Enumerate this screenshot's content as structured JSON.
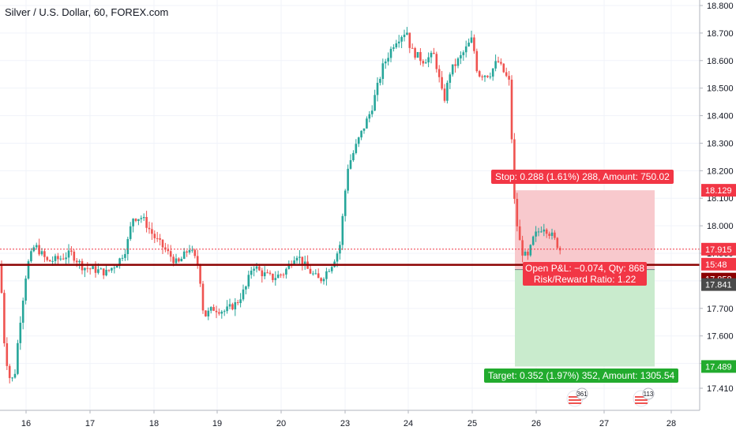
{
  "header": {
    "title": "Silver / U.S. Dollar, 60, FOREX.com"
  },
  "chart_data": {
    "type": "candlestick",
    "title": "Silver / U.S. Dollar, 60, FOREX.com",
    "y_ticks": [
      "17.410",
      "17.500",
      "17.600",
      "17.700",
      "17.800",
      "17.900",
      "18.000",
      "18.100",
      "18.200",
      "18.300",
      "18.400",
      "18.500",
      "18.600",
      "18.700",
      "18.800"
    ],
    "ylim": [
      17.41,
      18.8
    ],
    "x_ticks": [
      "16",
      "17",
      "18",
      "19",
      "20",
      "23",
      "24",
      "25",
      "26",
      "27",
      "28"
    ],
    "grid": true,
    "position": {
      "stop_label": "Stop: 0.288 (1.61%) 288, Amount: 750.02",
      "pnl_label": "Open P&L: −0.074, Qty: 868",
      "rr_label": "Risk/Reward Ratio: 1.22",
      "target_label": "Target: 0.352 (1.97%) 352, Amount: 1305.54",
      "stop_price": 18.129,
      "entry_price": 17.841,
      "target_price": 17.489
    },
    "price_tags": [
      {
        "label": "18.129",
        "color": "#f23645"
      },
      {
        "label": "17.915",
        "color": "#f23645"
      },
      {
        "label": "15:48",
        "color": "#f23645"
      },
      {
        "label": "17.858",
        "color": "#8b0000"
      },
      {
        "label": "17.841",
        "color": "#4a4a4a"
      },
      {
        "label": "17.489",
        "color": "#22ab2e"
      }
    ],
    "current_price": 17.915,
    "support_line": 17.858,
    "event_badges": [
      "361",
      "113"
    ]
  },
  "colors": {
    "up": "#26a69a",
    "down": "#ef5350",
    "stop_zone": "#f8c9cd",
    "target_zone": "#c9ebcd",
    "support": "#8b0000"
  }
}
